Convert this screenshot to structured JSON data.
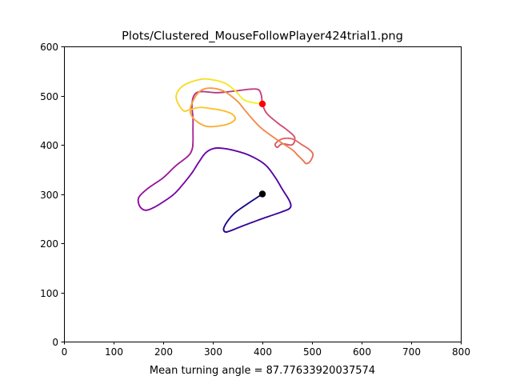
{
  "chart_data": {
    "type": "line",
    "title": "Plots/Clustered_MouseFollowPlayer424trial1.png",
    "xlabel": "Mean turning angle = 87.77633920037574",
    "ylabel": "",
    "xlim": [
      0,
      800
    ],
    "ylim": [
      0,
      600
    ],
    "xticks": [
      0,
      100,
      200,
      300,
      400,
      500,
      600,
      700,
      800
    ],
    "yticks": [
      0,
      100,
      200,
      300,
      400,
      500,
      600
    ],
    "grid": false,
    "colormap": "plasma",
    "colors": {
      "start_marker": "#000000",
      "end_marker": "#ff0000"
    },
    "start_point": {
      "x": 400,
      "y": 300
    },
    "end_point": {
      "x": 400,
      "y": 483
    },
    "trajectory": [
      [
        400,
        300
      ],
      [
        370,
        280
      ],
      [
        345,
        262
      ],
      [
        330,
        245
      ],
      [
        322,
        230
      ],
      [
        325,
        223
      ],
      [
        335,
        225
      ],
      [
        360,
        235
      ],
      [
        400,
        250
      ],
      [
        440,
        264
      ],
      [
        456,
        272
      ],
      [
        455,
        285
      ],
      [
        440,
        310
      ],
      [
        425,
        335
      ],
      [
        405,
        360
      ],
      [
        375,
        378
      ],
      [
        345,
        388
      ],
      [
        318,
        393
      ],
      [
        300,
        392
      ],
      [
        285,
        383
      ],
      [
        272,
        365
      ],
      [
        258,
        343
      ],
      [
        240,
        320
      ],
      [
        222,
        300
      ],
      [
        200,
        284
      ],
      [
        180,
        272
      ],
      [
        165,
        267
      ],
      [
        155,
        272
      ],
      [
        150,
        283
      ],
      [
        152,
        295
      ],
      [
        170,
        312
      ],
      [
        200,
        333
      ],
      [
        225,
        357
      ],
      [
        250,
        377
      ],
      [
        258,
        390
      ],
      [
        260,
        405
      ],
      [
        260,
        430
      ],
      [
        260,
        455
      ],
      [
        258,
        480
      ],
      [
        262,
        500
      ],
      [
        275,
        508
      ],
      [
        310,
        506
      ],
      [
        350,
        510
      ],
      [
        375,
        513
      ],
      [
        392,
        512
      ],
      [
        398,
        500
      ],
      [
        400,
        485
      ],
      [
        408,
        465
      ],
      [
        430,
        445
      ],
      [
        450,
        430
      ],
      [
        465,
        415
      ],
      [
        460,
        400
      ],
      [
        440,
        402
      ],
      [
        430,
        395
      ],
      [
        426,
        402
      ],
      [
        440,
        412
      ],
      [
        460,
        412
      ],
      [
        480,
        400
      ],
      [
        495,
        390
      ],
      [
        502,
        380
      ],
      [
        496,
        366
      ],
      [
        488,
        362
      ],
      [
        482,
        368
      ],
      [
        470,
        380
      ],
      [
        460,
        390
      ],
      [
        430,
        410
      ],
      [
        400,
        432
      ],
      [
        382,
        450
      ],
      [
        365,
        470
      ],
      [
        348,
        490
      ],
      [
        320,
        510
      ],
      [
        290,
        515
      ],
      [
        270,
        505
      ],
      [
        255,
        475
      ],
      [
        260,
        455
      ],
      [
        280,
        440
      ],
      [
        300,
        437
      ],
      [
        330,
        442
      ],
      [
        345,
        452
      ],
      [
        338,
        463
      ],
      [
        318,
        470
      ],
      [
        300,
        473
      ],
      [
        275,
        476
      ],
      [
        255,
        472
      ],
      [
        240,
        470
      ],
      [
        226,
        497
      ],
      [
        240,
        520
      ],
      [
        275,
        533
      ],
      [
        300,
        532
      ],
      [
        325,
        525
      ],
      [
        345,
        510
      ],
      [
        362,
        492
      ],
      [
        380,
        486
      ],
      [
        400,
        483
      ]
    ]
  }
}
